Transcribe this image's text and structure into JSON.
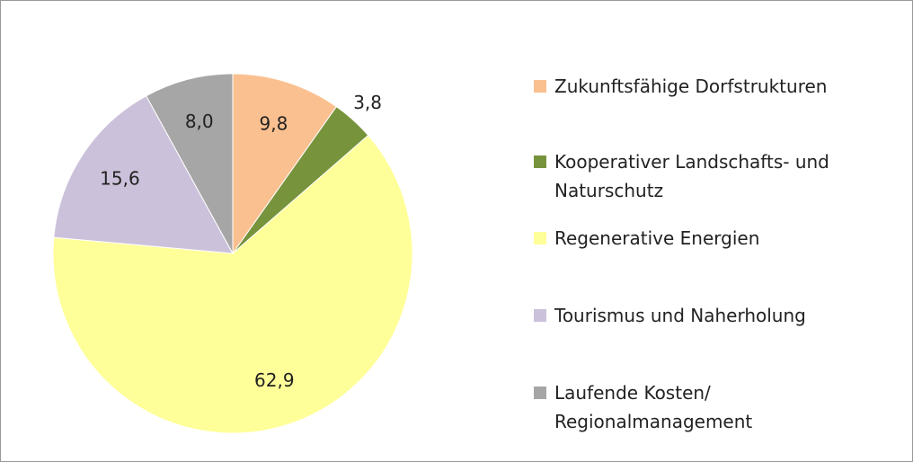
{
  "chart_data": {
    "type": "pie",
    "categories": [
      "Zukunftsfähige Dorfstrukturen",
      "Kooperativer Landschafts- und\nNaturschutz",
      "Regenerative Energien",
      "Tourismus und Naherholung",
      "Laufende Kosten/\nRegionalmanagement"
    ],
    "values": [
      9.8,
      3.8,
      62.9,
      15.6,
      8.0
    ],
    "value_labels": [
      "9,8",
      "3,8",
      "62,9",
      "15,6",
      "8,0"
    ],
    "colors": [
      "#FAC090",
      "#77933C",
      "#FFFF99",
      "#CCC1DA",
      "#A6A6A6"
    ],
    "legend": "right"
  }
}
